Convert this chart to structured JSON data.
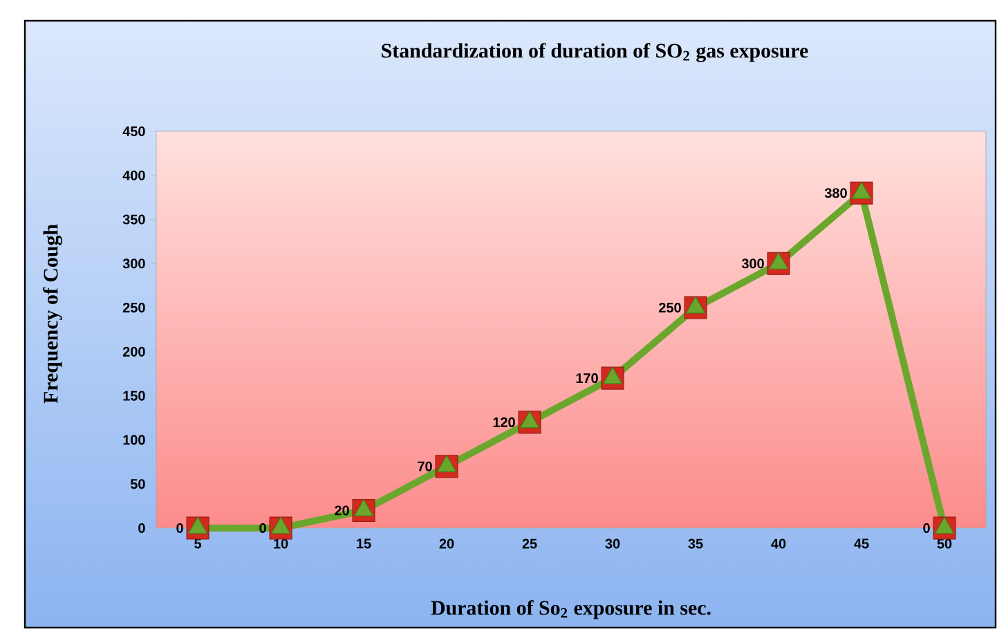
{
  "chart_data": {
    "type": "line",
    "title": "Standardization of duration of SO$_{2}$ gas exposure",
    "xlabel": "Duration of  So$_{2}$ exposure in sec.",
    "ylabel": "Frequency of Cough",
    "categories": [
      "5",
      "10",
      "15",
      "20",
      "25",
      "30",
      "35",
      "40",
      "45",
      "50"
    ],
    "series": [
      {
        "type": "scatter",
        "color": "#d42a1e",
        "marker": "square",
        "values": [
          0,
          0,
          20,
          70,
          120,
          170,
          250,
          300,
          380,
          0
        ]
      },
      {
        "type": "line",
        "color": "#6aa72c",
        "marker": "triangle",
        "data_labels": true,
        "values": [
          0,
          0,
          20,
          70,
          120,
          170,
          250,
          300,
          380,
          0
        ]
      }
    ],
    "ylim": [
      0,
      450
    ],
    "yticks": [
      0,
      50,
      100,
      150,
      200,
      250,
      300,
      350,
      400,
      450
    ]
  }
}
